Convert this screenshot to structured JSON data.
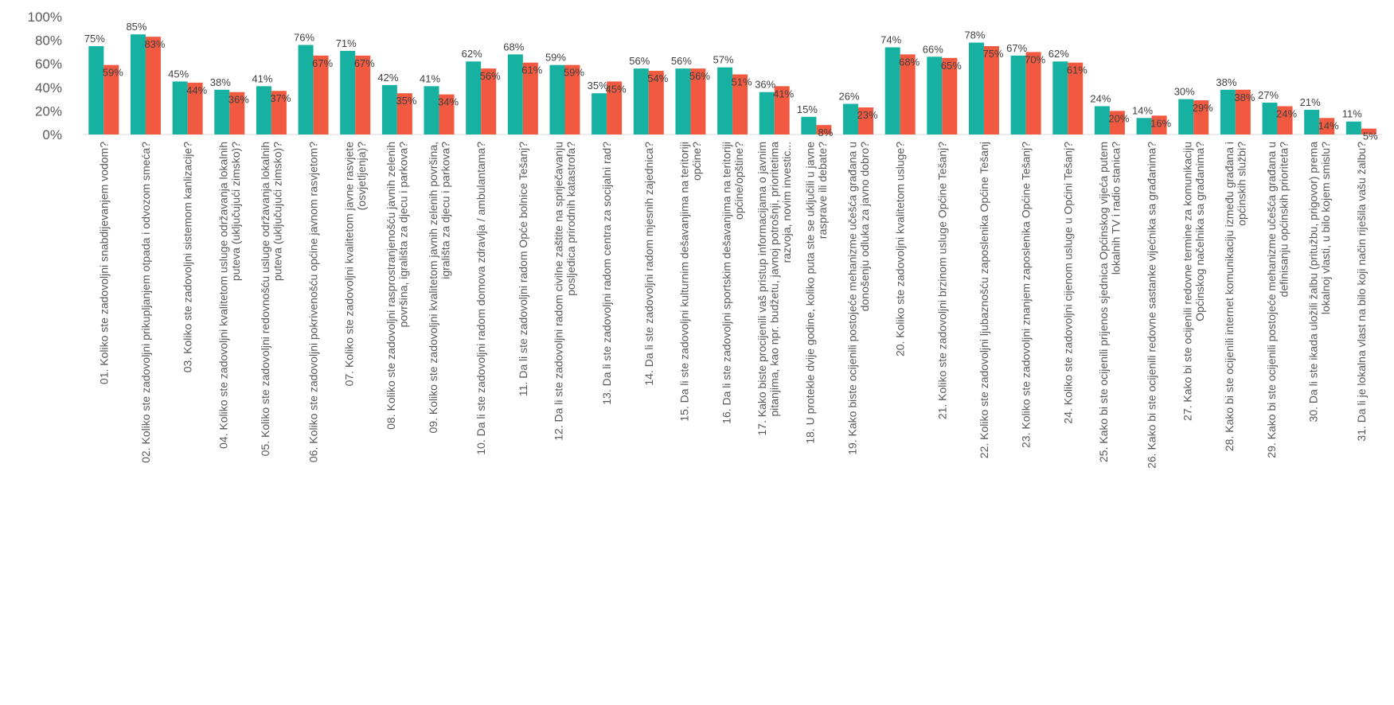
{
  "chart_data": {
    "type": "bar",
    "ylim": [
      0,
      100
    ],
    "yticks": [
      "0%",
      "20%",
      "40%",
      "60%",
      "80%",
      "100%"
    ],
    "grid": false,
    "colors": {
      "series_a": "#17b1a1",
      "series_b": "#f15a40"
    },
    "categories": [
      "01. Koliko ste zadovoljni snabdijevanjem vodom?",
      "02. Koliko ste zadovoljni prikupljanjem otpada i odvozom smeća?",
      "03. Koliko ste zadovoljni sistemom kanlizacije?",
      "04. Koliko ste zadovoljni kvalitetom usluge održavanja lokalnih puteva (uključujući zimsko)?",
      "05. Koliko ste zadovoljni redovnošću usluge održavanja lokalnih puteva (uključujući zimsko)?",
      "06. Koliko ste zadovoljni pokrivenošću općine javnom rasvjetom?",
      "07. Koliko ste zadovoljni kvalitetom javne rasvjete (osvjetljenja)?",
      "08. Koliko ste zadovoljni rasprostranjenošću javnih zelenih površina, igrališta za djecu i parkova?",
      "09. Koliko ste zadovoljni kvalitetom javnih zelenih površina, igrališta za djecu i parkova?",
      "10. Da li ste zadovoljni radom domova zdravlja / ambulantama?",
      "11. Da li ste zadovoljni radom Opće bolnice Tešanj?",
      "12. Da li ste zadovoljni radom civilne zaštite na spriječavanju posljedica prirodnih katastrofa?",
      "13. Da li ste zadovoljni radom centra za socijalni rad?",
      "14. Da li ste zadovoljni radom mjesnih zajednica?",
      "15. Da li ste zadovoljni kulturnim dešavanjima na teritoriji općine?",
      "16. Da li ste zadovoljni sportskim dešavanjima na teritoriji općine/opštine?",
      "17. Kako biste procijenili vaš pristup informacijama o javnim pitanjima, kao npr. budžetu, javnoj potrošnji, prioritetima razvoja, novim investic...",
      "18. U protekle dvije godine, koliko puta ste se uključili u javne rasprave ili debate?",
      "19. Kako biste ocijenili postojeće mehanizme učešća građana u donošenju odluka za javno dobro?",
      "20. Koliko ste zadovoljni kvalitetom usluge?",
      "21. Koliko ste zadovoljni brzinom usluge Općine Tešanj?",
      "22. Koliko ste zadovoljni ljubaznošću zaposlenika Općine Tešanj",
      "23. Koliko ste zadovoljni znanjem zaposlenika Općine Tešanj?",
      "24. Koliko ste zadovoljni cijenom usluge u Općini Tešanj?",
      "25. Kako bi ste ocijenili prijenos sjednica Općinskog vijeća putem lokalnih TV i radio stanica?",
      "26. Kako bi ste ocijenili redovne sastanke vijećnika sa građanima?",
      "27. Kako bi ste ocijenili redovne termine za komunikaciju Općinskog načelnika sa građanima?",
      "28. Kako bi ste ocijenili internet komunikaciju između građana i općinskih službi?",
      "29. Kako bi ste ocijenili postojeće mehanizme učešća građana u definisanju općinskih prioriteta?",
      "30. Da li ste ikada uložili žalbu (pritužbu, prigovor) prema lokalnoj vlasti, u bilo kojem smislu?",
      "31. Da li je lokalna vlast na bilo koji način riješila vašu žalbu?"
    ],
    "series": [
      {
        "values": [
          75,
          85,
          45,
          38,
          41,
          76,
          71,
          42,
          41,
          62,
          68,
          59,
          35,
          56,
          56,
          57,
          36,
          15,
          26,
          74,
          66,
          78,
          67,
          62,
          24,
          14,
          30,
          38,
          27,
          21,
          11
        ]
      },
      {
        "values": [
          59,
          83,
          44,
          36,
          37,
          67,
          67,
          35,
          34,
          56,
          61,
          59,
          45,
          54,
          56,
          51,
          41,
          8,
          23,
          68,
          65,
          75,
          70,
          61,
          20,
          16,
          29,
          38,
          24,
          14,
          5
        ]
      }
    ]
  }
}
